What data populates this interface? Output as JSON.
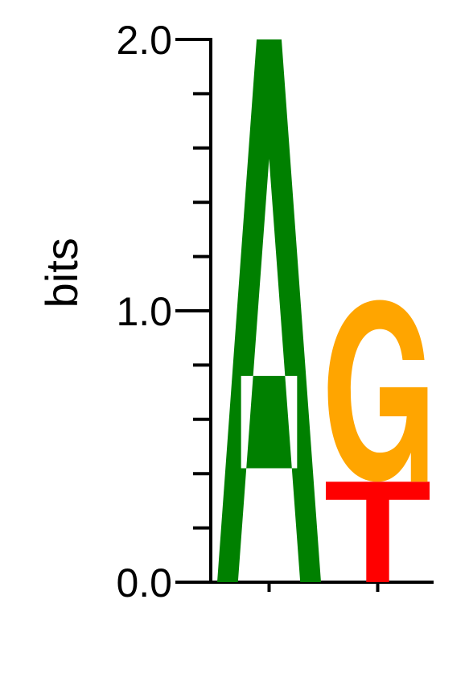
{
  "chart_data": {
    "type": "sequence-logo",
    "title": "",
    "xlabel": "",
    "ylabel": "bits",
    "ylim": [
      0,
      2
    ],
    "ytick_labels": [
      "0.0",
      "1.0",
      "2.0"
    ],
    "minor_tick_step": 0.2,
    "positions": [
      {
        "stack": [
          {
            "letter": "A",
            "bits": 2.0,
            "color": "#008000"
          }
        ]
      },
      {
        "stack": [
          {
            "letter": "T",
            "bits": 0.37,
            "color": "#ff0000"
          },
          {
            "letter": "G",
            "bits": 0.67,
            "color": "#ffa500"
          }
        ]
      }
    ]
  }
}
